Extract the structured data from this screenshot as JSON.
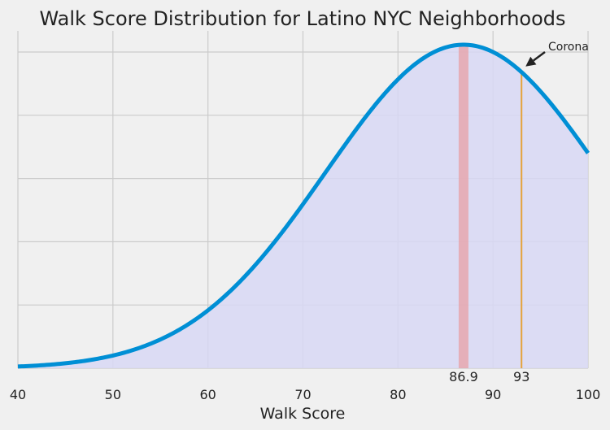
{
  "chart_data": {
    "type": "area",
    "title": "Walk Score Distribution for Latino NYC Neighborhoods",
    "xlabel": "Walk Score",
    "ylabel": "",
    "xlim": [
      40,
      100
    ],
    "x_ticks": [
      40,
      50,
      60,
      70,
      80,
      90,
      100
    ],
    "y_gridlines": 5,
    "grid": true,
    "series": [
      {
        "distribution": "normal",
        "mean": 86.9,
        "std": 14.5
      }
    ],
    "markers": [
      {
        "label": "86.9",
        "x": 86.9,
        "style": "band",
        "color": "#e8a0a6"
      },
      {
        "label": "93",
        "x": 93,
        "style": "line",
        "color": "#e5a33b"
      }
    ],
    "annotation": {
      "text": "Corona",
      "x": 93
    },
    "colors": {
      "background": "#f0f0f0",
      "line": "#008fd5",
      "fill": "#d8d8f4",
      "band": "#e8a0a6",
      "marker_line": "#e5a33b"
    }
  }
}
